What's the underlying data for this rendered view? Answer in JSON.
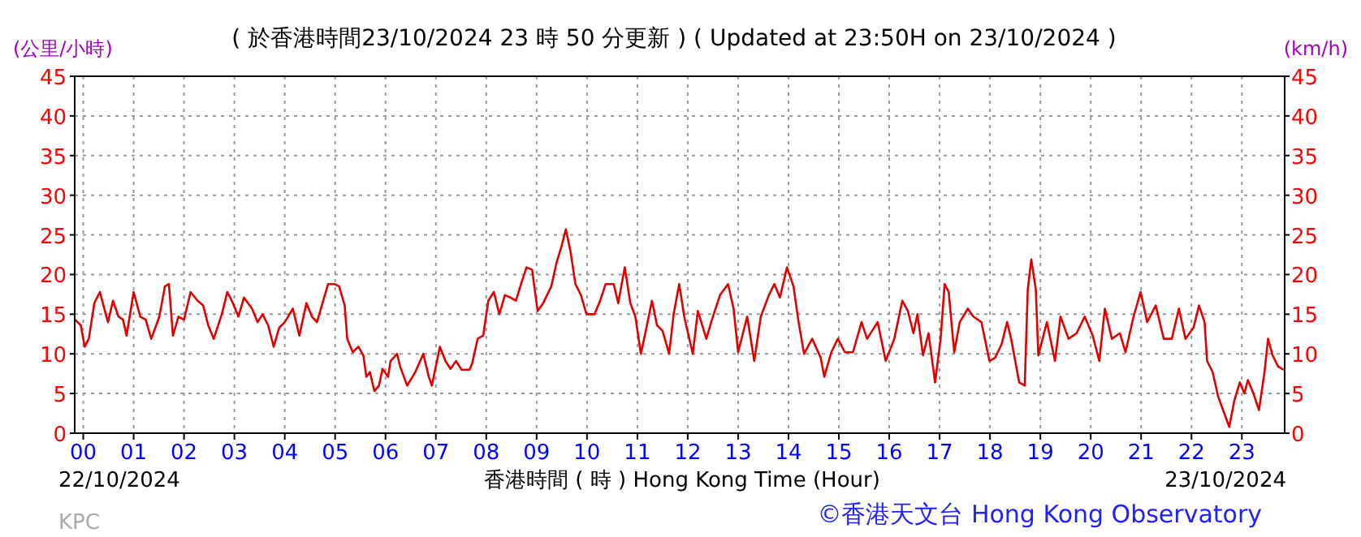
{
  "chart_data": {
    "type": "line",
    "title": "( 於香港時間23/10/2024 23 時 50 分更新 ) ( Updated at 23:50H on 23/10/2024 )",
    "ylabel": "(公里/小時)",
    "y2label": "(km/h)",
    "xlabel": "香港時間 ( 時 ) Hong Kong Time (Hour)",
    "annotations": [
      "22/10/2024",
      "23/10/2024",
      "KPC",
      "©香港天文台 Hong Kong Observatory"
    ],
    "xlim": [
      -0.17,
      23.85
    ],
    "ylim": [
      0,
      45
    ],
    "y2lim": [
      0,
      45
    ],
    "xticks": [
      {
        "value": 0,
        "label": "00"
      },
      {
        "value": 1,
        "label": "01"
      },
      {
        "value": 2,
        "label": "02"
      },
      {
        "value": 3,
        "label": "03"
      },
      {
        "value": 4,
        "label": "04"
      },
      {
        "value": 5,
        "label": "05"
      },
      {
        "value": 6,
        "label": "06"
      },
      {
        "value": 7,
        "label": "07"
      },
      {
        "value": 8,
        "label": "08"
      },
      {
        "value": 9,
        "label": "09"
      },
      {
        "value": 10,
        "label": "10"
      },
      {
        "value": 11,
        "label": "11"
      },
      {
        "value": 12,
        "label": "12"
      },
      {
        "value": 13,
        "label": "13"
      },
      {
        "value": 14,
        "label": "14"
      },
      {
        "value": 15,
        "label": "15"
      },
      {
        "value": 16,
        "label": "16"
      },
      {
        "value": 17,
        "label": "17"
      },
      {
        "value": 18,
        "label": "18"
      },
      {
        "value": 19,
        "label": "19"
      },
      {
        "value": 20,
        "label": "20"
      },
      {
        "value": 21,
        "label": "21"
      },
      {
        "value": 22,
        "label": "22"
      },
      {
        "value": 23,
        "label": "23"
      }
    ],
    "yticks": [
      0,
      5,
      10,
      15,
      20,
      25,
      30,
      35,
      40,
      45
    ],
    "y2ticks": [
      0,
      5,
      10,
      15,
      20,
      25,
      30,
      35,
      40,
      45
    ],
    "grid": true,
    "series": [
      {
        "color": "#e00000",
        "x": [
          -0.16,
          -0.05,
          0.03,
          0.11,
          0.22,
          0.33,
          0.43,
          0.49,
          0.59,
          0.7,
          0.79,
          0.86,
          1.0,
          1.13,
          1.24,
          1.35,
          1.51,
          1.62,
          1.7,
          1.78,
          1.89,
          2.0,
          2.13,
          2.27,
          2.38,
          2.48,
          2.59,
          2.75,
          2.86,
          2.97,
          3.08,
          3.19,
          3.35,
          3.46,
          3.56,
          3.67,
          3.78,
          3.89,
          4.0,
          4.16,
          4.29,
          4.43,
          4.54,
          4.64,
          4.75,
          4.86,
          4.99,
          5.08,
          5.19,
          5.24,
          5.35,
          5.46,
          5.56,
          5.62,
          5.69,
          5.78,
          5.87,
          5.94,
          6.05,
          6.1,
          6.23,
          6.29,
          6.43,
          6.59,
          6.75,
          6.86,
          6.92,
          7.08,
          7.19,
          7.29,
          7.4,
          7.51,
          7.67,
          7.72,
          7.83,
          7.94,
          8.04,
          8.15,
          8.26,
          8.37,
          8.48,
          8.59,
          8.69,
          8.8,
          8.91,
          9.02,
          9.13,
          9.29,
          9.4,
          9.5,
          9.58,
          9.67,
          9.77,
          9.88,
          9.99,
          10.15,
          10.26,
          10.37,
          10.53,
          10.62,
          10.75,
          10.86,
          10.96,
          11.07,
          11.18,
          11.29,
          11.39,
          11.5,
          11.63,
          11.72,
          11.83,
          11.93,
          12.1,
          12.2,
          12.37,
          12.48,
          12.64,
          12.8,
          12.91,
          13.0,
          13.18,
          13.32,
          13.45,
          13.61,
          13.72,
          13.83,
          13.97,
          14.1,
          14.2,
          14.31,
          14.47,
          14.64,
          14.71,
          14.85,
          14.98,
          15.12,
          15.28,
          15.45,
          15.56,
          15.77,
          15.93,
          16.1,
          16.26,
          16.37,
          16.48,
          16.56,
          16.67,
          16.78,
          16.91,
          17.02,
          17.1,
          17.18,
          17.29,
          17.4,
          17.56,
          17.67,
          17.83,
          17.99,
          18.1,
          18.23,
          18.34,
          18.42,
          18.58,
          18.69,
          18.75,
          18.82,
          18.91,
          18.96,
          19.13,
          19.29,
          19.4,
          19.56,
          19.72,
          19.88,
          20.04,
          20.17,
          20.28,
          20.42,
          20.58,
          20.69,
          20.85,
          20.99,
          21.12,
          21.29,
          21.45,
          21.61,
          21.75,
          21.88,
          22.04,
          22.15,
          22.26,
          22.31,
          22.42,
          22.53,
          22.75,
          22.85,
          22.96,
          23.05,
          23.12,
          23.23,
          23.34,
          23.45,
          23.52,
          23.61,
          23.72,
          23.83
        ],
        "values": [
          14.3,
          13.6,
          10.9,
          11.9,
          16.4,
          17.8,
          15.4,
          14,
          16.7,
          14.7,
          14.3,
          12.3,
          17.8,
          14.7,
          14.3,
          11.9,
          14.7,
          18.5,
          18.8,
          12.3,
          14.7,
          14.3,
          17.8,
          16.7,
          16.1,
          13.6,
          11.9,
          15,
          17.8,
          16.4,
          14.7,
          17.1,
          15.7,
          14,
          15,
          13.6,
          10.9,
          13.3,
          14,
          15.7,
          12.3,
          16.4,
          14.7,
          14,
          16.4,
          18.8,
          18.8,
          18.5,
          16.1,
          11.9,
          10.2,
          10.9,
          9.8,
          7.1,
          7.7,
          5.3,
          6,
          8.1,
          7.1,
          9.1,
          10,
          8.4,
          6,
          7.7,
          10,
          7.1,
          6,
          10.9,
          9.1,
          8.1,
          9.1,
          8,
          8,
          8.8,
          11.9,
          12.3,
          16.7,
          17.8,
          15,
          17.4,
          17.1,
          16.7,
          18.8,
          20.9,
          20.6,
          15.4,
          16.4,
          18.5,
          21.6,
          23.7,
          25.7,
          23,
          18.8,
          17.4,
          15,
          15,
          16.7,
          18.8,
          18.8,
          16.4,
          20.9,
          16.4,
          14.7,
          10,
          13.3,
          16.7,
          13.6,
          12.9,
          10,
          15,
          18.8,
          14.7,
          10,
          15.4,
          11.9,
          14.3,
          17.4,
          18.8,
          15.7,
          10.2,
          14.7,
          9.1,
          14.7,
          17.4,
          18.8,
          17.1,
          20.9,
          18.5,
          14,
          10,
          11.9,
          9.5,
          7.1,
          10.2,
          11.9,
          10.2,
          10.2,
          14,
          11.9,
          14,
          9.1,
          11.9,
          16.7,
          15.4,
          12.6,
          15,
          9.8,
          12.6,
          6.4,
          11.9,
          18.8,
          17.8,
          10.2,
          14,
          15.7,
          14.7,
          14,
          9.1,
          9.5,
          11.2,
          14,
          11.9,
          6.4,
          6,
          18.1,
          21.9,
          18.1,
          9.8,
          14,
          9.1,
          14.7,
          11.9,
          12.6,
          14.7,
          12.3,
          9.1,
          15.7,
          11.9,
          12.6,
          10.2,
          14.7,
          17.8,
          14,
          16.1,
          11.9,
          11.9,
          15.7,
          11.9,
          13.3,
          16.1,
          14,
          9.1,
          7.7,
          4.6,
          0.8,
          4.1,
          6.4,
          5,
          6.7,
          5,
          2.9,
          7.7,
          11.9,
          9.8,
          8.4,
          8
        ]
      }
    ]
  }
}
